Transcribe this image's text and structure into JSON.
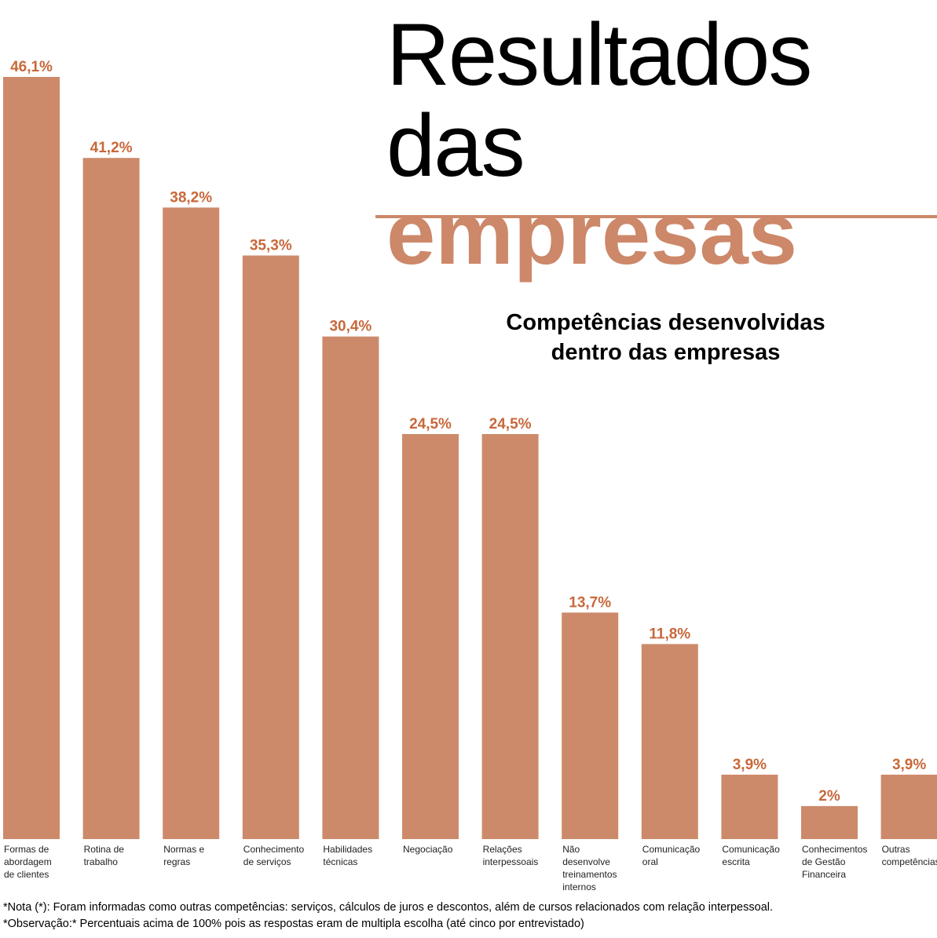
{
  "title": {
    "line1": "Resultados",
    "line2_plain": "das ",
    "line2_accent": "empresas"
  },
  "subtitle": {
    "line1": "Competências desenvolvidas",
    "line2": "dentro das empresas"
  },
  "colors": {
    "bar": "#cd8a6a",
    "value_label": "#c8683a",
    "accent": "#cc8869"
  },
  "chart_data": {
    "type": "bar",
    "unit": "%",
    "categories": [
      [
        "Formas de",
        "abordagem",
        "de clientes"
      ],
      [
        "Rotina de",
        "trabalho"
      ],
      [
        "Normas e",
        "regras"
      ],
      [
        "Conhecimento",
        "de serviços"
      ],
      [
        "Habilidades",
        "técnicas"
      ],
      [
        "Negociação"
      ],
      [
        "Relações",
        "interpessoais"
      ],
      [
        "Não",
        "desenvolve",
        "treinamentos",
        "internos"
      ],
      [
        "Comunicação",
        "oral"
      ],
      [
        "Comunicação",
        "escrita"
      ],
      [
        "Conhecimentos",
        "de Gestão",
        "Financeira"
      ],
      [
        "Outras",
        "competências"
      ]
    ],
    "values": [
      46.1,
      41.2,
      38.2,
      35.3,
      30.4,
      24.5,
      24.5,
      13.7,
      11.8,
      3.9,
      2,
      3.9
    ],
    "value_labels": [
      "46,1%",
      "41,2%",
      "38,2%",
      "35,3%",
      "30,4%",
      "24,5%",
      "24,5%",
      "13,7%",
      "11,8%",
      "3,9%",
      "2%",
      "3,9%"
    ],
    "title": "Competências desenvolvidas dentro das empresas",
    "xlabel": "",
    "ylabel": "",
    "grid": false,
    "legend": "none"
  },
  "notes": {
    "note": "*Nota (*): Foram informadas como outras competências: serviços, cálculos de juros e descontos, além de cursos relacionados com relação interpessoal.",
    "observation": "*Observação:* Percentuais acima de 100% pois as respostas eram de multipla escolha (até cinco por entrevistado)"
  }
}
